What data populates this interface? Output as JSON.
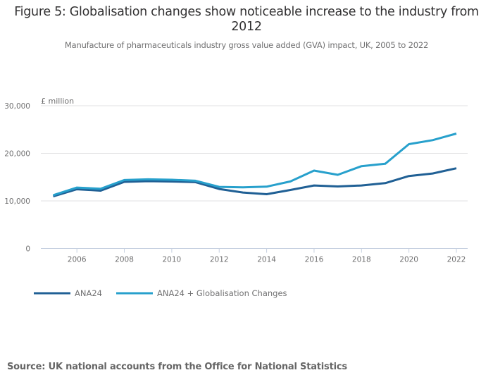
{
  "header": {
    "title": "Figure 5: Globalisation changes show noticeable increase to the industry from 2012",
    "subtitle": "Manufacture of pharmaceuticals industry gross value added (GVA) impact, UK, 2005 to 2022"
  },
  "footer": {
    "source": "Source: UK national accounts from the Office for National Statistics"
  },
  "chart_data": {
    "type": "line",
    "title": "Figure 5: Globalisation changes show noticeable increase to the industry from 2012",
    "subtitle": "Manufacture of pharmaceuticals industry gross value added (GVA) impact, UK, 2005 to 2022",
    "xlabel": "",
    "ylabel": "£ million",
    "x": [
      2005,
      2006,
      2007,
      2008,
      2009,
      2010,
      2011,
      2012,
      2013,
      2014,
      2015,
      2016,
      2017,
      2018,
      2019,
      2020,
      2021,
      2022
    ],
    "xlim": [
      2005,
      2022
    ],
    "ylim": [
      0,
      30000
    ],
    "x_ticks": [
      2006,
      2008,
      2010,
      2012,
      2014,
      2016,
      2018,
      2020,
      2022
    ],
    "x_tick_labels": [
      "2006",
      "2008",
      "2010",
      "2012",
      "2014",
      "2016",
      "2018",
      "2020",
      "2022"
    ],
    "y_ticks": [
      0,
      10000,
      20000,
      30000
    ],
    "y_tick_labels": [
      "0",
      "10,000",
      "20,000",
      "30,000"
    ],
    "grid": true,
    "legend_position": "bottom-left",
    "series": [
      {
        "name": "ANA24",
        "color": "#206095",
        "values": [
          10950,
          12450,
          12150,
          14000,
          14150,
          14080,
          13940,
          12500,
          11770,
          11410,
          12300,
          13250,
          13040,
          13250,
          13740,
          15230,
          15760,
          16860
        ]
      },
      {
        "name": "ANA24 + Globalisation Changes",
        "color": "#27a0cc",
        "values": [
          11200,
          12800,
          12550,
          14380,
          14530,
          14440,
          14230,
          12950,
          12850,
          13000,
          14090,
          16370,
          15480,
          17310,
          17800,
          21920,
          22770,
          24150
        ]
      }
    ]
  }
}
